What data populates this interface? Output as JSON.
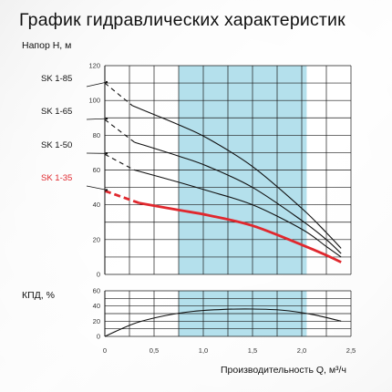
{
  "title": "График гидравлических характеристик",
  "colors": {
    "band": "#b4e0ec",
    "grid": "#1a1a1a",
    "highlight": "#e0282e",
    "curve": "#111111"
  },
  "chart_data": [
    {
      "type": "line",
      "ylabel": "Напор H, м",
      "xlabel": "",
      "xlim": [
        0,
        2.5
      ],
      "ylim": [
        0,
        120
      ],
      "y_ticks": [
        "0",
        "20",
        "40",
        "60",
        "80",
        "100",
        "120"
      ],
      "x_ticks": [
        "0",
        "0,5",
        "1,0",
        "1,5",
        "2,0",
        "2,5"
      ],
      "shaded_band": [
        0.75,
        2.05
      ],
      "grid": true,
      "series": [
        {
          "name": "SK 1-85",
          "dashed_x": [
            0,
            0.28
          ],
          "x": [
            0.28,
            0.75,
            1.05,
            1.5,
            2.0,
            2.25,
            2.4
          ],
          "values": [
            97,
            86,
            78,
            62,
            38,
            24,
            15
          ]
        },
        {
          "name": "SK 1-65",
          "dashed_x": [
            0,
            0.3
          ],
          "x": [
            0.3,
            0.75,
            1.05,
            1.5,
            2.0,
            2.25,
            2.4
          ],
          "values": [
            76,
            68,
            62,
            50,
            31,
            20,
            12
          ]
        },
        {
          "name": "SK 1-50",
          "dashed_x": [
            0,
            0.3
          ],
          "x": [
            0.3,
            0.75,
            1.05,
            1.5,
            2.0,
            2.25,
            2.4
          ],
          "values": [
            60,
            53,
            48,
            40,
            26,
            16,
            10
          ]
        },
        {
          "name": "SK 1-35",
          "highlight": true,
          "dashed_x": [
            0,
            0.35
          ],
          "x": [
            0.35,
            0.75,
            1.05,
            1.5,
            2.0,
            2.25,
            2.4
          ],
          "values": [
            41,
            37,
            34,
            28,
            17,
            11,
            7
          ]
        }
      ],
      "series_start_values": [
        110,
        89,
        69,
        48
      ]
    },
    {
      "type": "line",
      "ylabel": "КПД, %",
      "xlabel": "Производительность Q, м³/ч",
      "xlim": [
        0,
        2.5
      ],
      "ylim": [
        0,
        60
      ],
      "y_ticks": [
        "0",
        "20",
        "40",
        "60"
      ],
      "x_ticks": [
        "0",
        "0,5",
        "1,0",
        "1,5",
        "2,0",
        "2,5"
      ],
      "shaded_band": [
        0.75,
        2.05
      ],
      "grid": true,
      "series": [
        {
          "x": [
            0,
            0.3,
            0.6,
            0.9,
            1.2,
            1.5,
            1.8,
            2.1,
            2.4
          ],
          "values": [
            0,
            17,
            27,
            33,
            35.5,
            36,
            34.5,
            29,
            20
          ]
        }
      ]
    }
  ]
}
